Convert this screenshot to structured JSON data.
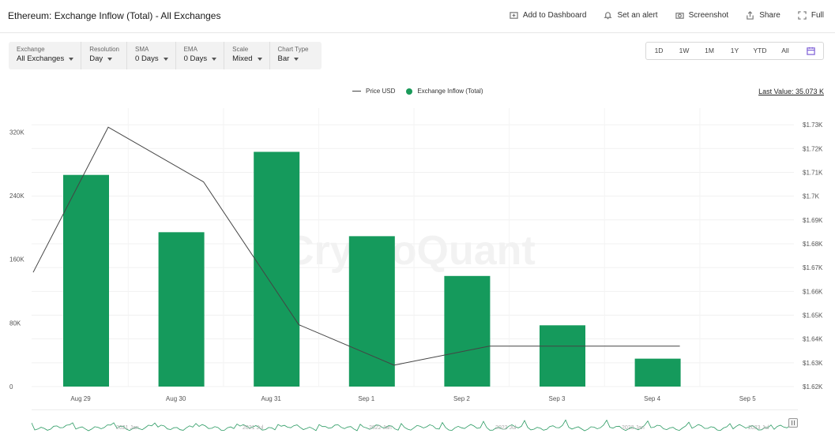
{
  "header": {
    "title": "Ethereum: Exchange Inflow (Total) - All Exchanges",
    "actions": [
      {
        "label": "Add to Dashboard",
        "icon": "add-dashboard-icon"
      },
      {
        "label": "Set an alert",
        "icon": "bell-icon"
      },
      {
        "label": "Screenshot",
        "icon": "camera-icon"
      },
      {
        "label": "Share",
        "icon": "share-icon"
      },
      {
        "label": "Full",
        "icon": "fullscreen-icon"
      }
    ]
  },
  "filters": [
    {
      "label": "Exchange",
      "value": "All Exchanges"
    },
    {
      "label": "Resolution",
      "value": "Day"
    },
    {
      "label": "SMA",
      "value": "0 Days"
    },
    {
      "label": "EMA",
      "value": "0 Days"
    },
    {
      "label": "Scale",
      "value": "Mixed"
    },
    {
      "label": "Chart Type",
      "value": "Bar"
    }
  ],
  "ranges": [
    "1D",
    "1W",
    "1M",
    "1Y",
    "YTD",
    "All"
  ],
  "legend": {
    "price": "Price USD",
    "inflow": "Exchange Inflow (Total)"
  },
  "last_value": "Last Value: 35.073 K",
  "watermark": "CryptoQuant",
  "colors": {
    "bar": "#159a5c",
    "price_line": "#444444",
    "accent": "#7b5cd6"
  },
  "chart_data": {
    "type": "bar",
    "categories": [
      "Aug 29",
      "Aug 30",
      "Aug 31",
      "Sep 1",
      "Sep 2",
      "Sep 3",
      "Sep 4",
      "Sep 5"
    ],
    "series": [
      {
        "name": "Exchange Inflow (Total)",
        "type": "bar",
        "axis": "left",
        "values": [
          266000,
          194000,
          295000,
          189000,
          139000,
          77000,
          35073,
          null
        ]
      },
      {
        "name": "Price USD",
        "type": "line",
        "axis": "right",
        "values": [
          1729,
          1706,
          1646,
          1629,
          1637,
          1637,
          1637,
          null
        ],
        "start_value": 1668
      }
    ],
    "y_left": {
      "ticks": [
        "0",
        "80K",
        "160K",
        "240K",
        "320K"
      ],
      "tick_values": [
        0,
        80000,
        160000,
        240000,
        320000
      ],
      "range": [
        0,
        350000
      ]
    },
    "y_right": {
      "ticks": [
        "$1.62K",
        "$1.63K",
        "$1.64K",
        "$1.65K",
        "$1.66K",
        "$1.67K",
        "$1.68K",
        "$1.69K",
        "$1.7K",
        "$1.71K",
        "$1.72K",
        "$1.73K"
      ],
      "tick_values": [
        1620,
        1630,
        1640,
        1650,
        1660,
        1670,
        1680,
        1690,
        1700,
        1710,
        1720,
        1730
      ],
      "range": [
        1620,
        1737
      ]
    },
    "grid": true
  },
  "navigator": {
    "labels": [
      "2021 Jan",
      "2021 Jul",
      "2022 Jan",
      "2022 Jul",
      "2023 Jan",
      "2023 Jul"
    ]
  }
}
